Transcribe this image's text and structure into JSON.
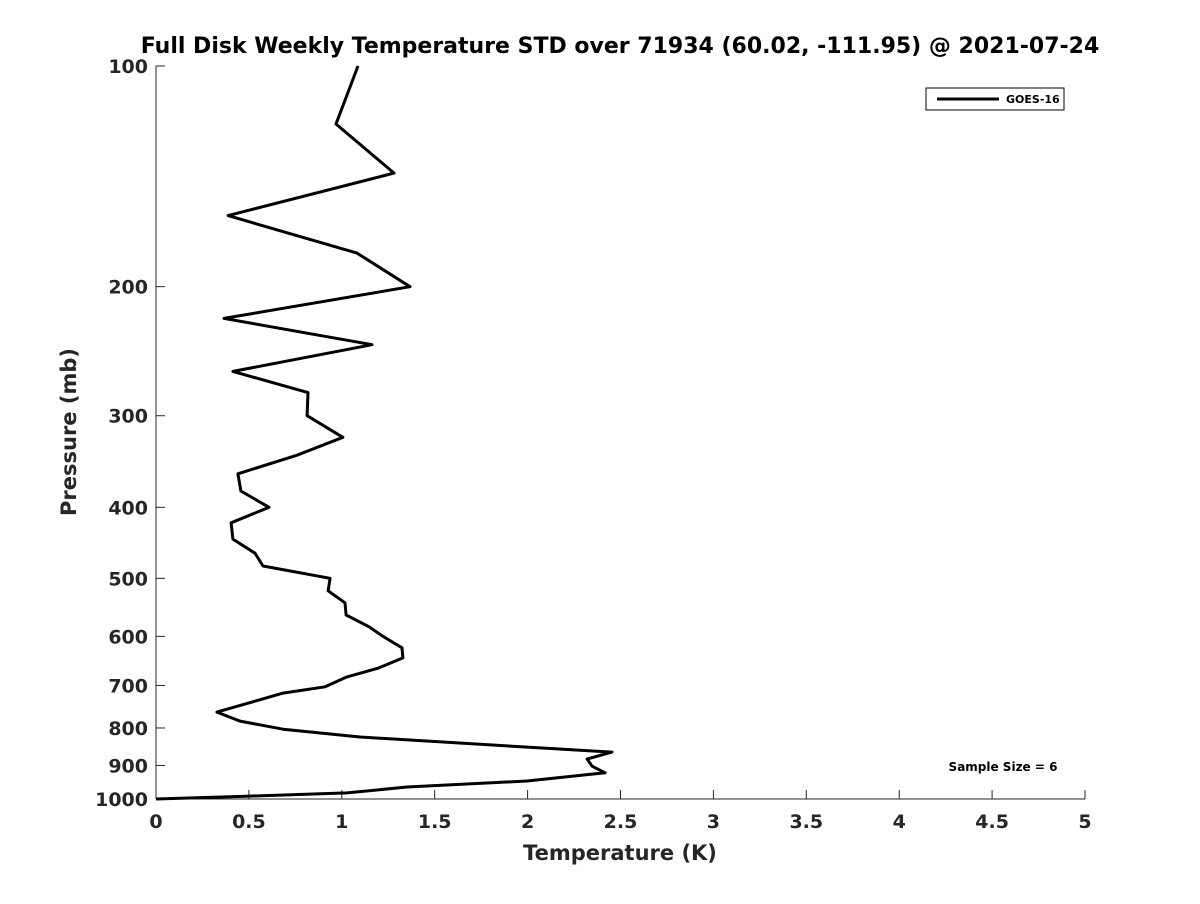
{
  "chart_data": {
    "type": "line",
    "title": "Full Disk Weekly Temperature STD over 71934 (60.02, -111.95) @ 2021-07-24",
    "xlabel": "Temperature (K)",
    "ylabel": "Pressure (mb)",
    "xlim": [
      0,
      5
    ],
    "ylim": [
      100,
      1000
    ],
    "yscale": "log",
    "yreversed": true,
    "xticks": [
      0,
      0.5,
      1,
      1.5,
      2,
      2.5,
      3,
      3.5,
      4,
      4.5,
      5
    ],
    "xtick_labels": [
      "0",
      "0.5",
      "1",
      "1.5",
      "2",
      "2.5",
      "3",
      "3.5",
      "4",
      "4.5",
      "5"
    ],
    "yticks": [
      100,
      200,
      300,
      400,
      500,
      600,
      700,
      800,
      900,
      1000
    ],
    "ytick_labels": [
      "100",
      "200",
      "300",
      "400",
      "500",
      "600",
      "700",
      "800",
      "900",
      "1000"
    ],
    "grid": false,
    "legend": {
      "placement": "top-right",
      "entries": [
        "GOES-16"
      ]
    },
    "annotation": "Sample Size = 6",
    "series": [
      {
        "name": "GOES-16",
        "color": "#000000",
        "points": [
          [
            1.087,
            100
          ],
          [
            0.969,
            120
          ],
          [
            1.281,
            140
          ],
          [
            0.388,
            160
          ],
          [
            1.082,
            180
          ],
          [
            1.367,
            200
          ],
          [
            0.366,
            221
          ],
          [
            1.163,
            240
          ],
          [
            0.414,
            261
          ],
          [
            0.818,
            279
          ],
          [
            0.813,
            300
          ],
          [
            1.006,
            321
          ],
          [
            0.753,
            340
          ],
          [
            0.441,
            360
          ],
          [
            0.457,
            380
          ],
          [
            0.608,
            400
          ],
          [
            0.404,
            420
          ],
          [
            0.414,
            442
          ],
          [
            0.533,
            462
          ],
          [
            0.576,
            481
          ],
          [
            0.937,
            500
          ],
          [
            0.926,
            520
          ],
          [
            1.017,
            540
          ],
          [
            1.023,
            561
          ],
          [
            1.146,
            582
          ],
          [
            1.222,
            600
          ],
          [
            1.324,
            622
          ],
          [
            1.329,
            642
          ],
          [
            1.195,
            663
          ],
          [
            1.023,
            682
          ],
          [
            0.91,
            703
          ],
          [
            0.684,
            717
          ],
          [
            0.328,
            761
          ],
          [
            0.452,
            783
          ],
          [
            0.684,
            803
          ],
          [
            1.098,
            823
          ],
          [
            1.975,
            849
          ],
          [
            2.454,
            863
          ],
          [
            2.32,
            882
          ],
          [
            2.347,
            902
          ],
          [
            2.417,
            921
          ],
          [
            1.997,
            945
          ],
          [
            1.351,
            963
          ],
          [
            1.028,
            981
          ],
          [
            0.506,
            991
          ],
          [
            0,
            1000
          ]
        ]
      }
    ]
  }
}
